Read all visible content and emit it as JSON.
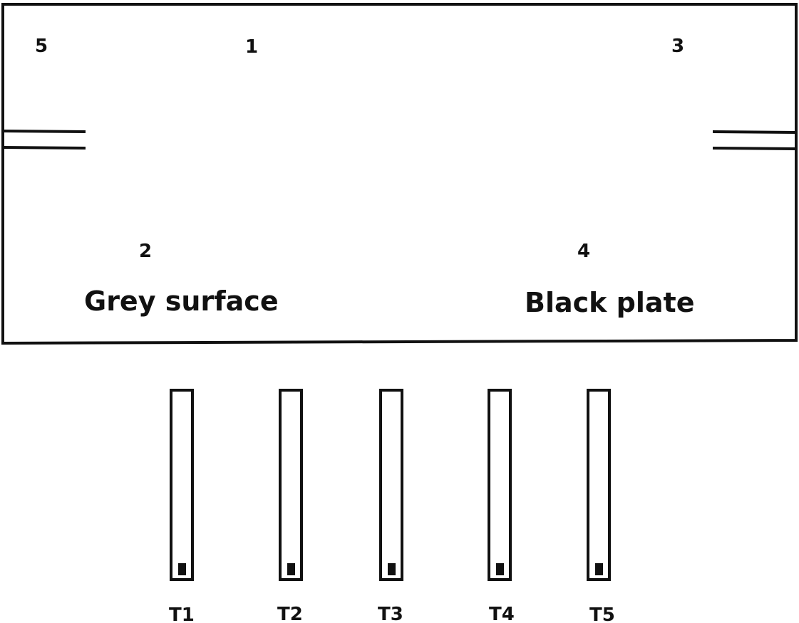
{
  "point_labels": [
    "5",
    "1",
    "3",
    "2",
    "4"
  ],
  "regions": {
    "left": "Grey surface",
    "right": "Black plate"
  },
  "thermometers": [
    "T1",
    "T2",
    "T3",
    "T4",
    "T5"
  ],
  "colors": {
    "stroke": "#111111",
    "background": "#ffffff"
  }
}
